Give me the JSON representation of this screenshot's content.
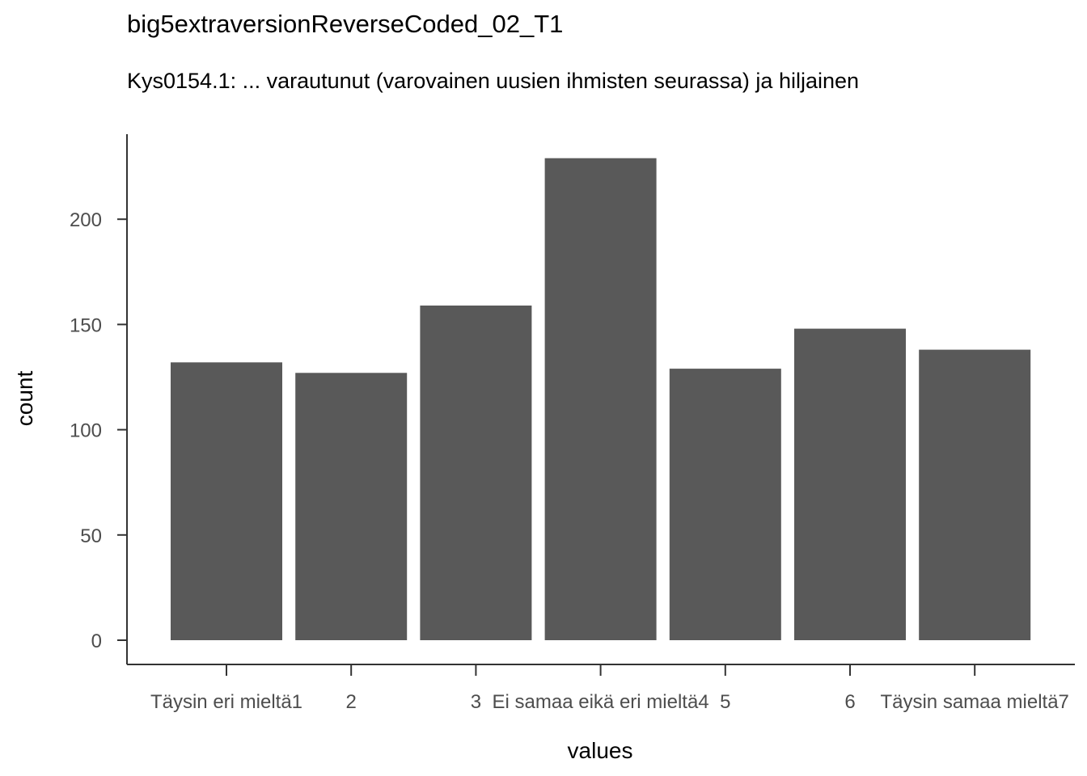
{
  "chart_data": {
    "type": "bar",
    "title": "big5extraversionReverseCoded_02_T1",
    "subtitle": "Kys0154.1: ... varautunut (varovainen uusien ihmisten seurassa) ja hiljainen",
    "xlabel": "values",
    "ylabel": "count",
    "categories": [
      "Täysin eri mieltä1",
      "2",
      "3",
      "Ei samaa eikä eri mieltä4",
      "5",
      "6",
      "Täysin samaa mieltä7"
    ],
    "values": [
      132,
      127,
      159,
      229,
      129,
      148,
      138
    ],
    "ylim": [
      0,
      240
    ],
    "yticks": [
      0,
      50,
      100,
      150,
      200
    ],
    "grid": false,
    "bar_color": "#595959",
    "axis_color": "#333333",
    "tick_label_color": "#4d4d4d"
  }
}
